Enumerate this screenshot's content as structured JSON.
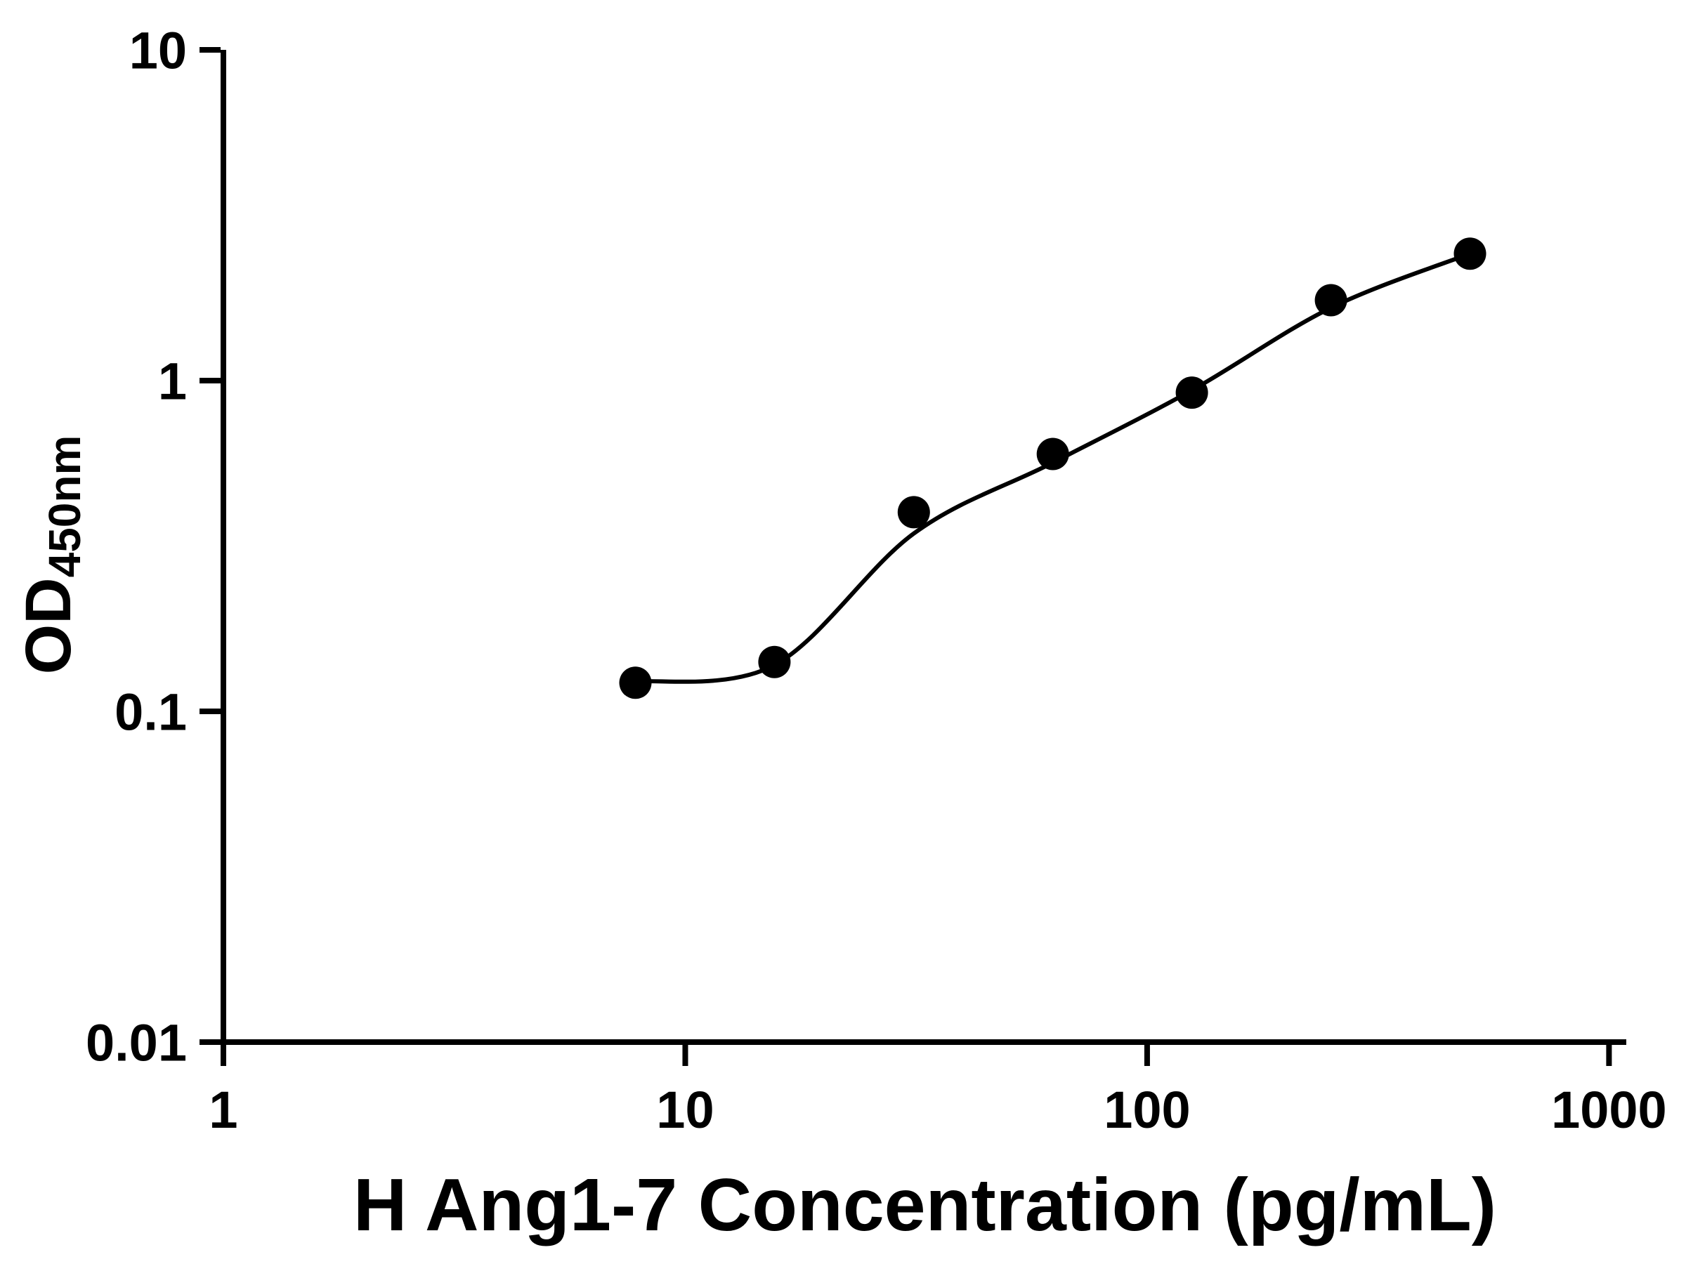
{
  "figure": {
    "background_color": "#ffffff",
    "foreground_color": "#000000"
  },
  "chart_data": {
    "type": "scatter",
    "title": "",
    "xlabel": "H Ang1-7 Concentration (pg/mL)",
    "ylabel_main": "OD",
    "ylabel_sub": "450nm",
    "x_scale": "log",
    "y_scale": "log",
    "xlim": [
      1,
      1090
    ],
    "ylim": [
      0.01,
      10
    ],
    "grid": false,
    "legend": "none",
    "x_ticks": [
      {
        "value": 1,
        "label": "1"
      },
      {
        "value": 10,
        "label": "10"
      },
      {
        "value": 100,
        "label": "100"
      },
      {
        "value": 1000,
        "label": "1000"
      }
    ],
    "y_ticks": [
      {
        "value": 0.01,
        "label": "0.01"
      },
      {
        "value": 0.1,
        "label": "0.1"
      },
      {
        "value": 1,
        "label": "1"
      },
      {
        "value": 10,
        "label": "10"
      }
    ],
    "series": [
      {
        "name": "standard-points",
        "kind": "scatter",
        "marker": "circle",
        "marker_color": "#000000",
        "points": [
          [
            7.8,
            0.122
          ],
          [
            15.6,
            0.141
          ],
          [
            31.25,
            0.4
          ],
          [
            62.5,
            0.6
          ],
          [
            125,
            0.92
          ],
          [
            250,
            1.75
          ],
          [
            500,
            2.42
          ]
        ]
      },
      {
        "name": "fit-curve",
        "kind": "line",
        "line_color": "#000000",
        "points": [
          [
            7.8,
            0.123
          ],
          [
            15.6,
            0.138
          ],
          [
            31.25,
            0.345
          ],
          [
            62.5,
            0.565
          ],
          [
            125,
            0.935
          ],
          [
            250,
            1.66
          ],
          [
            500,
            2.42
          ]
        ]
      }
    ]
  }
}
